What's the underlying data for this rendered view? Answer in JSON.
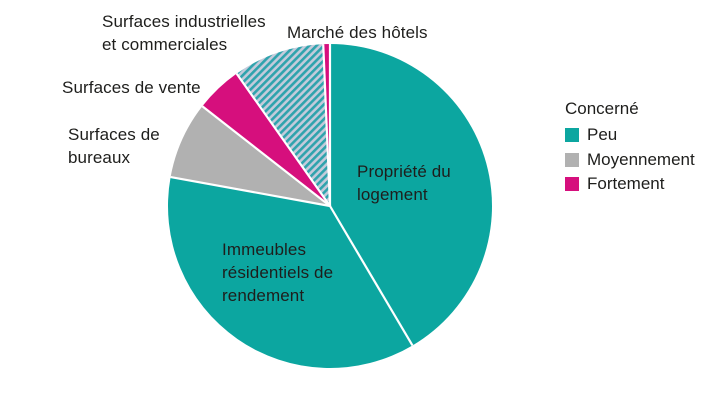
{
  "labels": {
    "industrielles": "Surfaces industrielles\net commerciales",
    "hotels": "Marché des hôtels",
    "vente": "Surfaces de vente",
    "bureaux": "Surfaces de\nbureaux",
    "propriete": "Propriété du\nlogement",
    "immeubles": "Immeubles\nrésidentiels de\nrendement"
  },
  "legend": {
    "title": "Concerné",
    "items": [
      {
        "label": "Peu",
        "color": "#0ca6a0"
      },
      {
        "label": "Moyennement",
        "color": "#b1b1b1"
      },
      {
        "label": "Fortement",
        "color": "#d60f7d"
      }
    ]
  },
  "chart_data": {
    "type": "pie",
    "title": "",
    "legend_title": "Concerné",
    "legend_position": "right",
    "colors": {
      "peu": "#0ca6a0",
      "moyennement": "#b1b1b1",
      "fortement": "#d60f7d",
      "hatch_bg": "#c5cbdb",
      "hatch_fg": "#2fa3ad",
      "separator": "#ffffff"
    },
    "slices": [
      {
        "id": "propriete-du-logement",
        "label": "Propriété du logement",
        "category": "Peu",
        "fill": "peu",
        "value_pct": 41.5,
        "start_deg": 0,
        "end_deg": 149.4
      },
      {
        "id": "immeubles-residentiels-de-rendement",
        "label": "Immeubles résidentiels de rendement",
        "category": "Peu",
        "fill": "peu",
        "value_pct": 36.4,
        "start_deg": 149.4,
        "end_deg": 280.3
      },
      {
        "id": "surfaces-de-bureaux",
        "label": "Surfaces de bureaux",
        "category": "Moyennement",
        "fill": "moyennement",
        "value_pct": 7.7,
        "start_deg": 280.3,
        "end_deg": 308.0
      },
      {
        "id": "surfaces-de-vente",
        "label": "Surfaces de vente",
        "category": "Fortement",
        "fill": "fortement",
        "value_pct": 4.7,
        "start_deg": 308.0,
        "end_deg": 324.8
      },
      {
        "id": "surfaces-industrielles-et-commerciales",
        "label": "Surfaces industrielles et commerciales",
        "category": "Peu/Moyennement (hachuré)",
        "fill": "hatch",
        "value_pct": 9.1,
        "start_deg": 324.8,
        "end_deg": 357.6
      },
      {
        "id": "marche-des-hotels",
        "label": "Marché des hôtels",
        "category": "Fortement",
        "fill": "fortement",
        "value_pct": 0.7,
        "start_deg": 357.6,
        "end_deg": 360
      }
    ]
  }
}
